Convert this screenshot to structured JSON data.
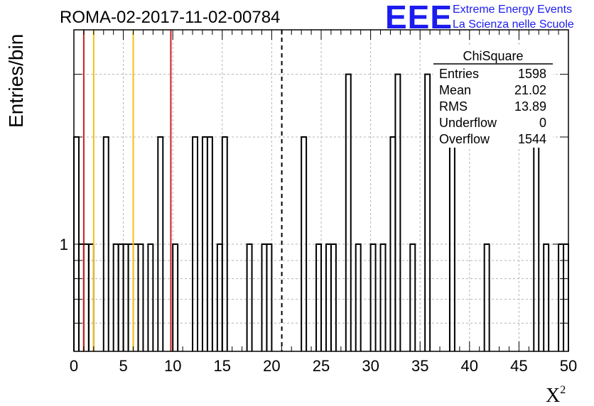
{
  "logo": {
    "mark": "EEE",
    "line1": "Extreme Energy Events",
    "line2": "La Scienza nelle Scuole"
  },
  "chart_data": {
    "type": "histogram",
    "title": "ROMA-02-2017-11-02-00784",
    "xlabel": "X",
    "xlabel_superscript": "2",
    "ylabel": "Entries/bin",
    "xlim": [
      0,
      50
    ],
    "ylim": [
      0.5,
      4
    ],
    "yscale": "log",
    "grid": true,
    "xticks": [
      0,
      5,
      10,
      15,
      20,
      25,
      30,
      35,
      40,
      45,
      50
    ],
    "ytick_labels": [
      {
        "value": 1,
        "label": "1"
      }
    ],
    "bin_width": 0.5,
    "bins": [
      {
        "x": 0.0,
        "y": 2
      },
      {
        "x": 0.5,
        "y": 1
      },
      {
        "x": 1.0,
        "y": 1
      },
      {
        "x": 1.5,
        "y": 1
      },
      {
        "x": 3.0,
        "y": 2
      },
      {
        "x": 4.0,
        "y": 1
      },
      {
        "x": 4.5,
        "y": 1
      },
      {
        "x": 5.0,
        "y": 1
      },
      {
        "x": 5.5,
        "y": 1
      },
      {
        "x": 6.0,
        "y": 1
      },
      {
        "x": 6.5,
        "y": 1
      },
      {
        "x": 7.5,
        "y": 1
      },
      {
        "x": 8.5,
        "y": 2
      },
      {
        "x": 10.0,
        "y": 1
      },
      {
        "x": 12.0,
        "y": 2
      },
      {
        "x": 13.0,
        "y": 2
      },
      {
        "x": 13.5,
        "y": 2
      },
      {
        "x": 14.5,
        "y": 1
      },
      {
        "x": 15.0,
        "y": 2
      },
      {
        "x": 17.5,
        "y": 1
      },
      {
        "x": 19.0,
        "y": 1
      },
      {
        "x": 19.5,
        "y": 1
      },
      {
        "x": 23.0,
        "y": 2
      },
      {
        "x": 24.5,
        "y": 1
      },
      {
        "x": 25.5,
        "y": 1
      },
      {
        "x": 26.0,
        "y": 1
      },
      {
        "x": 27.5,
        "y": 3
      },
      {
        "x": 28.5,
        "y": 1
      },
      {
        "x": 30.0,
        "y": 1
      },
      {
        "x": 31.0,
        "y": 1
      },
      {
        "x": 32.0,
        "y": 2
      },
      {
        "x": 32.5,
        "y": 3
      },
      {
        "x": 34.0,
        "y": 1
      },
      {
        "x": 35.5,
        "y": 3
      },
      {
        "x": 38.0,
        "y": 2
      },
      {
        "x": 41.5,
        "y": 1
      },
      {
        "x": 46.5,
        "y": 2
      },
      {
        "x": 47.5,
        "y": 1
      },
      {
        "x": 49.0,
        "y": 1
      },
      {
        "x": 49.5,
        "y": 1
      }
    ],
    "markers": [
      {
        "x": 1.0,
        "color": "#cc1f1f",
        "style": "solid"
      },
      {
        "x": 2.0,
        "color": "#f2c014",
        "style": "solid"
      },
      {
        "x": 6.0,
        "color": "#f2c014",
        "style": "solid"
      },
      {
        "x": 9.8,
        "color": "#cc1f1f",
        "style": "solid"
      },
      {
        "x": 21.02,
        "color": "#000000",
        "style": "dashed"
      }
    ],
    "stats": {
      "title": "ChiSquare",
      "rows": [
        {
          "label": "Entries",
          "value": "1598"
        },
        {
          "label": "Mean",
          "value": "21.02"
        },
        {
          "label": "RMS",
          "value": "13.89"
        },
        {
          "label": "Underflow",
          "value": "0"
        },
        {
          "label": "Overflow",
          "value": "1544"
        }
      ]
    }
  }
}
